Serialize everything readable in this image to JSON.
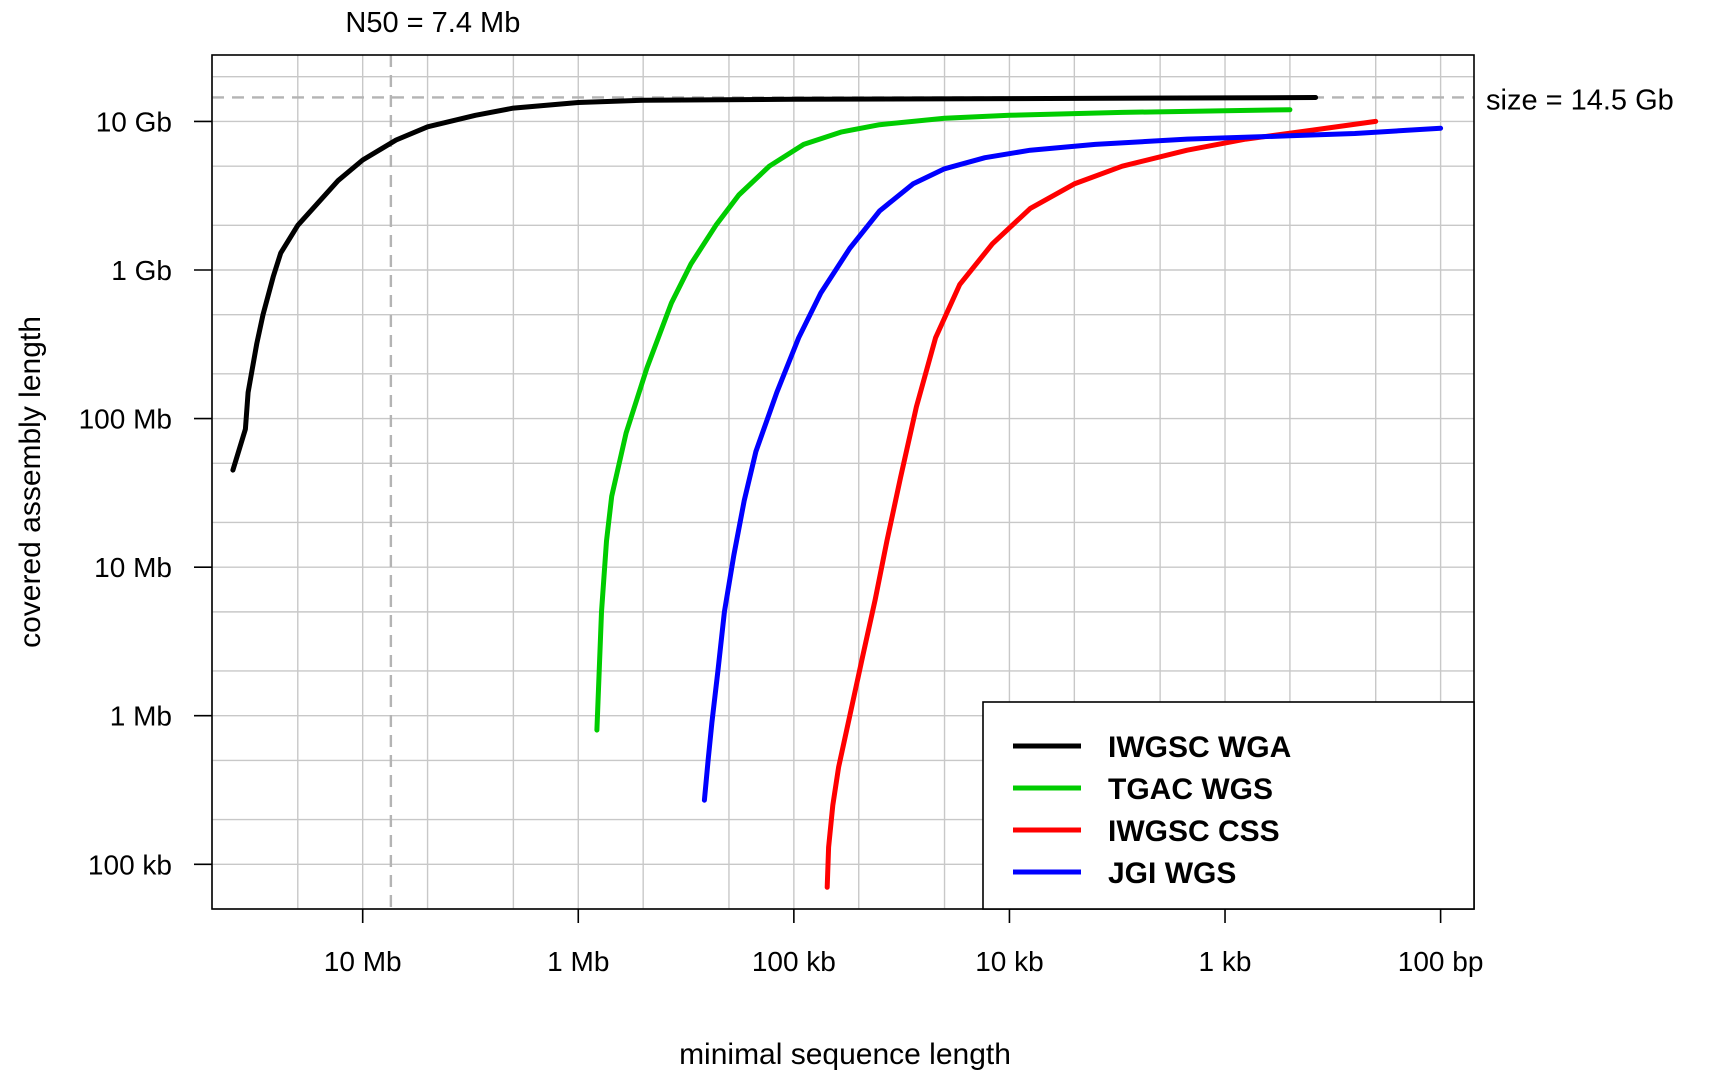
{
  "chart_data": {
    "type": "line",
    "title": "",
    "xlabel": "minimal sequence length",
    "ylabel": "covered assembly length",
    "x_scale": "log, reversed",
    "y_scale": "log",
    "x_range_bp": [
      50000000,
      70
    ],
    "y_range_bp": [
      50000,
      28000000000
    ],
    "grid": true,
    "legend_position": "bottom-right",
    "x_ticks": [
      {
        "value": 10000000,
        "label": "10 Mb"
      },
      {
        "value": 1000000,
        "label": "1 Mb"
      },
      {
        "value": 100000,
        "label": "100 kb"
      },
      {
        "value": 10000,
        "label": "10 kb"
      },
      {
        "value": 1000,
        "label": "1 kb"
      },
      {
        "value": 100,
        "label": "100 bp"
      }
    ],
    "y_ticks": [
      {
        "value": 100000,
        "label": "100 kb"
      },
      {
        "value": 1000000,
        "label": "1 Mb"
      },
      {
        "value": 10000000,
        "label": "10 Mb"
      },
      {
        "value": 100000000,
        "label": "100 Mb"
      },
      {
        "value": 1000000000,
        "label": "1 Gb"
      },
      {
        "value": 10000000000,
        "label": "10 Gb"
      }
    ],
    "reference_lines": [
      {
        "axis": "x",
        "value": 7400000,
        "label": "N50 = 7.4 Mb"
      },
      {
        "axis": "y",
        "value": 14500000000,
        "label": "size = 14.5 Gb"
      }
    ],
    "series": [
      {
        "name": "IWGSC WGA",
        "color": "#000000",
        "points": [
          [
            40000000,
            45000000
          ],
          [
            35000000,
            85000000
          ],
          [
            34000000,
            150000000
          ],
          [
            31000000,
            320000000
          ],
          [
            29000000,
            500000000
          ],
          [
            26000000,
            900000000
          ],
          [
            24000000,
            1300000000
          ],
          [
            20000000,
            2000000000
          ],
          [
            17000000,
            2600000000
          ],
          [
            13000000,
            4000000000
          ],
          [
            10000000,
            5500000000
          ],
          [
            7000000,
            7500000000
          ],
          [
            5000000,
            9200000000
          ],
          [
            3000000,
            11000000000
          ],
          [
            2000000,
            12300000000
          ],
          [
            1000000,
            13400000000
          ],
          [
            500000,
            13900000000
          ],
          [
            100000,
            14100000000
          ],
          [
            10000,
            14250000000
          ],
          [
            1000,
            14400000000
          ],
          [
            380,
            14500000000
          ]
        ]
      },
      {
        "name": "TGAC WGS",
        "color": "#00cc00",
        "points": [
          [
            820000,
            800000
          ],
          [
            800000,
            2000000
          ],
          [
            780000,
            5000000
          ],
          [
            740000,
            15000000
          ],
          [
            700000,
            30000000
          ],
          [
            600000,
            80000000
          ],
          [
            480000,
            220000000
          ],
          [
            370000,
            600000000
          ],
          [
            300000,
            1100000000
          ],
          [
            230000,
            2000000000
          ],
          [
            180000,
            3200000000
          ],
          [
            130000,
            5000000000
          ],
          [
            90000,
            7000000000
          ],
          [
            60000,
            8500000000
          ],
          [
            40000,
            9500000000
          ],
          [
            20000,
            10500000000
          ],
          [
            10000,
            11000000000
          ],
          [
            3000,
            11500000000
          ],
          [
            1000,
            11800000000
          ],
          [
            500,
            12000000000
          ]
        ]
      },
      {
        "name": "IWGSC CSS",
        "color": "#ff0000",
        "points": [
          [
            70000,
            70000
          ],
          [
            69000,
            130000
          ],
          [
            66000,
            250000
          ],
          [
            62000,
            450000
          ],
          [
            55000,
            1000000
          ],
          [
            48000,
            2500000
          ],
          [
            42000,
            6000000
          ],
          [
            37000,
            15000000
          ],
          [
            32000,
            40000000
          ],
          [
            27000,
            120000000
          ],
          [
            22000,
            350000000
          ],
          [
            17000,
            800000000
          ],
          [
            12000,
            1500000000
          ],
          [
            8000,
            2600000000
          ],
          [
            5000,
            3800000000
          ],
          [
            3000,
            5000000000
          ],
          [
            1500,
            6400000000
          ],
          [
            800,
            7600000000
          ],
          [
            400,
            8700000000
          ],
          [
            200,
            10000000000
          ]
        ]
      },
      {
        "name": "JGI WGS",
        "color": "#0000ff",
        "points": [
          [
            260000,
            270000
          ],
          [
            250000,
            500000
          ],
          [
            240000,
            900000
          ],
          [
            225000,
            2000000
          ],
          [
            210000,
            5000000
          ],
          [
            190000,
            12000000
          ],
          [
            170000,
            28000000
          ],
          [
            150000,
            60000000
          ],
          [
            120000,
            150000000
          ],
          [
            95000,
            350000000
          ],
          [
            75000,
            700000000
          ],
          [
            55000,
            1400000000
          ],
          [
            40000,
            2500000000
          ],
          [
            28000,
            3800000000
          ],
          [
            20000,
            4800000000
          ],
          [
            13000,
            5700000000
          ],
          [
            8000,
            6400000000
          ],
          [
            4000,
            7000000000
          ],
          [
            1500,
            7600000000
          ],
          [
            500,
            8000000000
          ],
          [
            250,
            8300000000
          ],
          [
            100,
            9000000000
          ]
        ]
      }
    ]
  },
  "axis": {
    "xlabel": "minimal sequence length",
    "ylabel": "covered assembly length"
  },
  "annotations": {
    "n50": "N50 = 7.4 Mb",
    "size": "size = 14.5 Gb"
  }
}
